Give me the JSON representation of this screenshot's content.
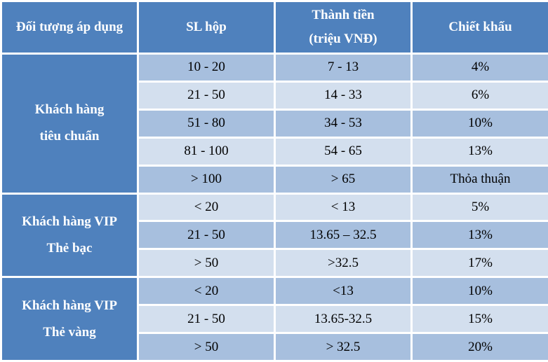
{
  "table": {
    "headers": {
      "target": "Đối tượng áp dụng",
      "quantity": "SL hộp",
      "amount_line1": "Thành tiền",
      "amount_line2": "(triệu VNĐ)",
      "discount": "Chiết khấu"
    },
    "groups": [
      {
        "label_line1": "Khách hàng",
        "label_line2": "tiêu chuẩn",
        "rows": [
          {
            "quantity": "10 - 20",
            "amount": "7 - 13",
            "discount": "4%"
          },
          {
            "quantity": "21 - 50",
            "amount": "14 - 33",
            "discount": "6%"
          },
          {
            "quantity": "51 - 80",
            "amount": "34 - 53",
            "discount": "10%"
          },
          {
            "quantity": "81 - 100",
            "amount": "54 - 65",
            "discount": "13%"
          },
          {
            "quantity": "> 100",
            "amount": "> 65",
            "discount": "Thỏa thuận"
          }
        ]
      },
      {
        "label_line1": "Khách hàng VIP",
        "label_line2": "Thẻ bạc",
        "rows": [
          {
            "quantity": "< 20",
            "amount": "< 13",
            "discount": "5%"
          },
          {
            "quantity": "21 - 50",
            "amount": "13.65 – 32.5",
            "discount": "13%"
          },
          {
            "quantity": "> 50",
            "amount": ">32.5",
            "discount": "17%"
          }
        ]
      },
      {
        "label_line1": "Khách hàng VIP",
        "label_line2": "Thẻ vàng",
        "rows": [
          {
            "quantity": "< 20",
            "amount": "<13",
            "discount": "10%"
          },
          {
            "quantity": "21 - 50",
            "amount": "13.65-32.5",
            "discount": "15%"
          },
          {
            "quantity": "> 50",
            "amount": "> 32.5",
            "discount": "20%"
          }
        ]
      }
    ],
    "colors": {
      "header_bg": "#4f81bd",
      "row_dark": "#a7bfde",
      "row_light": "#d3dfee"
    }
  }
}
